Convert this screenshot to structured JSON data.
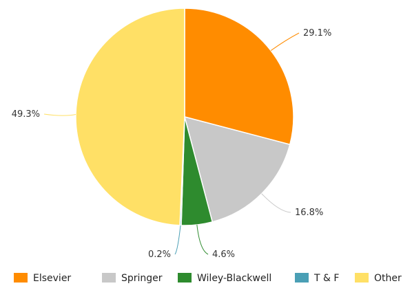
{
  "chart_data": {
    "type": "pie",
    "start_angle_deg": 0,
    "direction": "clockwise",
    "legend_position": "bottom",
    "slices": [
      {
        "name": "Elsevier",
        "value": 29.1,
        "label": "29.1%",
        "color": "#FF8C00"
      },
      {
        "name": "Springer",
        "value": 16.8,
        "label": "16.8%",
        "color": "#C8C8C8"
      },
      {
        "name": "Wiley-Blackwell",
        "value": 4.6,
        "label": "4.6%",
        "color": "#2E8B2E"
      },
      {
        "name": "T & F",
        "value": 0.2,
        "label": "0.2%",
        "color": "#4A9FB5"
      },
      {
        "name": "Other",
        "value": 49.3,
        "label": "49.3%",
        "color": "#FFE066"
      }
    ]
  }
}
